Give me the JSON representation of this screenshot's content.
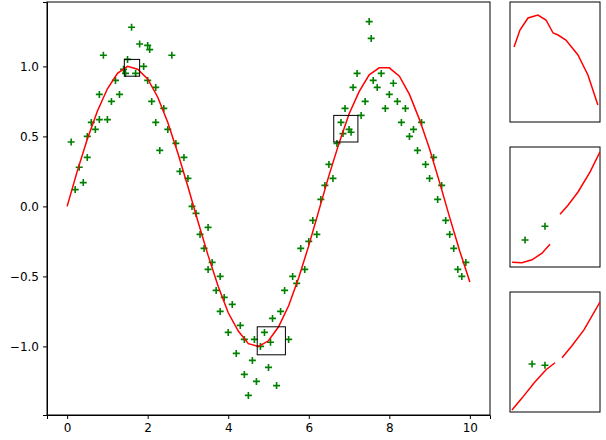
{
  "chart_data": {
    "type": "scatter",
    "xlim": [
      -0.5,
      10.5
    ],
    "ylim": [
      -1.49,
      1.46
    ],
    "xticks": [
      0,
      2,
      4,
      6,
      8,
      10
    ],
    "yticks": [
      {
        "value": -1,
        "label": "−1.0"
      },
      {
        "value": -0.5,
        "label": "−0.5"
      },
      {
        "value": 0,
        "label": "0.0"
      },
      {
        "value": 0.5,
        "label": "0.5"
      },
      {
        "value": 1,
        "label": "1.0"
      }
    ],
    "series": [
      {
        "type": "scatter",
        "marker": "plus",
        "color": "#008000",
        "x": [
          0.1,
          0.2,
          0.3,
          0.4,
          0.5,
          0.5,
          0.6,
          0.7,
          0.8,
          0.8,
          0.9,
          1.0,
          1.1,
          1.2,
          1.3,
          1.4,
          1.45,
          1.5,
          1.6,
          1.7,
          1.8,
          1.9,
          2.0,
          2.0,
          2.05,
          2.1,
          2.2,
          2.2,
          2.3,
          2.4,
          2.5,
          2.6,
          2.7,
          2.8,
          2.9,
          3.0,
          3.1,
          3.2,
          3.3,
          3.4,
          3.5,
          3.5,
          3.6,
          3.7,
          3.8,
          3.8,
          3.9,
          4.0,
          4.1,
          4.2,
          4.3,
          4.4,
          4.4,
          4.5,
          4.6,
          4.65,
          4.7,
          4.8,
          4.9,
          5.0,
          5.05,
          5.1,
          5.2,
          5.3,
          5.4,
          5.5,
          5.6,
          5.7,
          5.8,
          5.9,
          6.0,
          6.1,
          6.2,
          6.3,
          6.4,
          6.5,
          6.6,
          6.7,
          6.8,
          6.85,
          6.9,
          7.0,
          7.05,
          7.1,
          7.2,
          7.3,
          7.4,
          7.5,
          7.55,
          7.6,
          7.7,
          7.8,
          7.9,
          8.0,
          8.1,
          8.2,
          8.3,
          8.4,
          8.5,
          8.6,
          8.7,
          8.8,
          8.9,
          9.0,
          9.1,
          9.2,
          9.3,
          9.4,
          9.5,
          9.6,
          9.7,
          9.8,
          9.9
        ],
        "values": [
          0.46,
          0.12,
          0.28,
          0.17,
          0.35,
          0.5,
          0.6,
          0.55,
          0.62,
          0.8,
          1.08,
          0.62,
          0.75,
          0.9,
          0.8,
          0.98,
          0.95,
          1.05,
          1.28,
          0.95,
          1.16,
          1.0,
          0.9,
          1.15,
          1.12,
          0.75,
          0.6,
          0.85,
          0.4,
          0.7,
          0.55,
          1.08,
          0.45,
          0.25,
          0.35,
          0.2,
          0.0,
          -0.05,
          -0.2,
          -0.3,
          -0.15,
          -0.45,
          -0.4,
          -0.6,
          -0.5,
          -0.75,
          -0.65,
          -0.9,
          -0.7,
          -1.05,
          -0.85,
          -1.2,
          -0.95,
          -1.35,
          -1.1,
          -0.95,
          -1.25,
          -1.0,
          -0.9,
          -1.15,
          -0.97,
          -0.8,
          -1.28,
          -0.75,
          -0.6,
          -0.95,
          -0.5,
          -0.55,
          -0.3,
          -0.45,
          -0.25,
          -0.1,
          -0.2,
          0.05,
          0.15,
          0.3,
          0.2,
          0.45,
          0.6,
          0.52,
          0.7,
          0.55,
          0.53,
          0.85,
          0.95,
          0.65,
          0.75,
          1.32,
          1.2,
          0.9,
          0.85,
          0.95,
          0.7,
          0.8,
          0.88,
          0.75,
          0.6,
          0.7,
          0.5,
          0.55,
          0.4,
          0.6,
          0.3,
          0.2,
          0.35,
          0.05,
          0.15,
          -0.1,
          -0.2,
          -0.3,
          -0.45,
          -0.5,
          -0.4
        ]
      },
      {
        "type": "line",
        "line_style": "solid",
        "color": "#ff0000",
        "x": [
          0,
          0.25,
          0.5,
          0.75,
          1,
          1.25,
          1.5,
          1.75,
          2,
          2.25,
          2.5,
          2.75,
          3,
          3.25,
          3.5,
          3.75,
          4,
          4.25,
          4.5,
          4.75,
          5,
          5.25,
          5.5,
          5.75,
          6,
          6.25,
          6.5,
          6.75,
          7,
          7.25,
          7.5,
          7.75,
          8,
          8.25,
          8.5,
          8.75,
          9,
          9.25,
          9.5,
          9.75,
          10
        ],
        "values": [
          0,
          0.25,
          0.48,
          0.68,
          0.84,
          0.95,
          1.0,
          0.98,
          0.91,
          0.78,
          0.6,
          0.38,
          0.14,
          -0.11,
          -0.35,
          -0.57,
          -0.76,
          -0.89,
          -0.98,
          -1.0,
          -0.96,
          -0.86,
          -0.71,
          -0.51,
          -0.28,
          -0.03,
          0.22,
          0.45,
          0.66,
          0.82,
          0.94,
          0.99,
          0.99,
          0.93,
          0.8,
          0.62,
          0.41,
          0.17,
          -0.08,
          -0.32,
          -0.54
        ]
      }
    ],
    "insets": [
      {
        "type": "line",
        "tick_labels": false,
        "xlim": [
          1.42,
          1.8
        ],
        "ylim": [
          0.93,
          1.05
        ],
        "series": [
          {
            "type": "line",
            "line_style": "solid",
            "color": "#ff0000",
            "x": [
              1.437,
              1.462,
              1.496,
              1.538,
              1.572,
              1.602,
              1.623,
              1.656,
              1.707,
              1.749,
              1.791
            ],
            "values": [
              1.005,
              1.022,
              1.034,
              1.037,
              1.032,
              1.019,
              1.017,
              1.012,
              0.997,
              0.977,
              0.947
            ]
          }
        ]
      },
      {
        "type": "line",
        "tick_labels": false,
        "xlim": [
          4.72,
          5.42
        ],
        "ylim": [
          -1.06,
          -0.86
        ],
        "series": [
          {
            "type": "scatter",
            "marker": "plus",
            "color": "#008000",
            "x": [
              4.837,
              4.992
            ],
            "values": [
              -1.015,
              -0.992
            ]
          },
          {
            "type": "line",
            "line_style": "solid",
            "color": "#ff0000",
            "x": [
              4.736,
              4.813,
              4.891,
              4.969,
              5.031,
              5.07,
              5.109,
              5.171,
              5.249,
              5.342,
              5.42
            ],
            "values": [
              -1.052,
              -1.053,
              -1.048,
              -1.037,
              -1.022,
              null,
              -0.972,
              -0.957,
              -0.935,
              -0.902,
              -0.868
            ]
          }
        ]
      },
      {
        "type": "line",
        "tick_labels": false,
        "xlim": [
          6.62,
          7.22
        ],
        "ylim": [
          0.46,
          0.65
        ],
        "series": [
          {
            "type": "scatter",
            "marker": "plus",
            "color": "#008000",
            "x": [
              6.767,
              6.853
            ],
            "values": [
              0.536,
              0.534
            ]
          },
          {
            "type": "line",
            "line_style": "solid",
            "color": "#ff0000",
            "x": [
              6.633,
              6.7,
              6.78,
              6.86,
              6.92,
              6.94,
              6.967,
              7.033,
              7.113,
              7.22
            ],
            "values": [
              0.463,
              0.482,
              0.506,
              0.527,
              0.538,
              null,
              0.546,
              0.565,
              0.59,
              0.634
            ]
          }
        ]
      }
    ]
  }
}
